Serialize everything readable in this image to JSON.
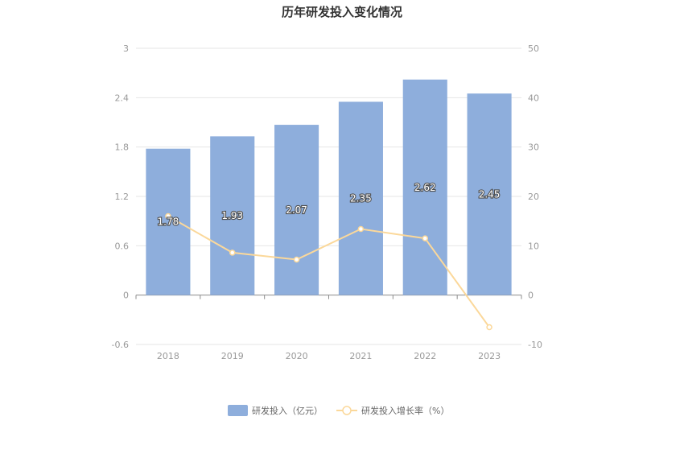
{
  "chart_data": {
    "type": "bar",
    "title": "历年研发投入变化情况",
    "categories": [
      "2018",
      "2019",
      "2020",
      "2021",
      "2022",
      "2023"
    ],
    "series": [
      {
        "name": "研发投入（亿元）",
        "type": "bar",
        "axis": "left",
        "values": [
          1.78,
          1.93,
          2.07,
          2.35,
          2.62,
          2.45
        ],
        "data_labels": [
          "1.78",
          "1.93",
          "2.07",
          "2.35",
          "2.62",
          "2.45"
        ],
        "color": "#8eaedc"
      },
      {
        "name": "研发投入增长率（%）",
        "type": "line",
        "axis": "right",
        "values": [
          16.0,
          8.6,
          7.2,
          13.4,
          11.5,
          -6.5
        ],
        "color": "#fbd89a"
      }
    ],
    "y_left": {
      "ylim": [
        -0.6,
        3
      ],
      "ticks": [
        "-0.6",
        "0",
        "0.6",
        "1.2",
        "1.8",
        "2.4",
        "3"
      ]
    },
    "y_right": {
      "ylim": [
        -10,
        50
      ],
      "ticks": [
        "-10",
        "0",
        "10",
        "20",
        "30",
        "40",
        "50"
      ]
    },
    "grid": true,
    "legend_position": "bottom"
  }
}
